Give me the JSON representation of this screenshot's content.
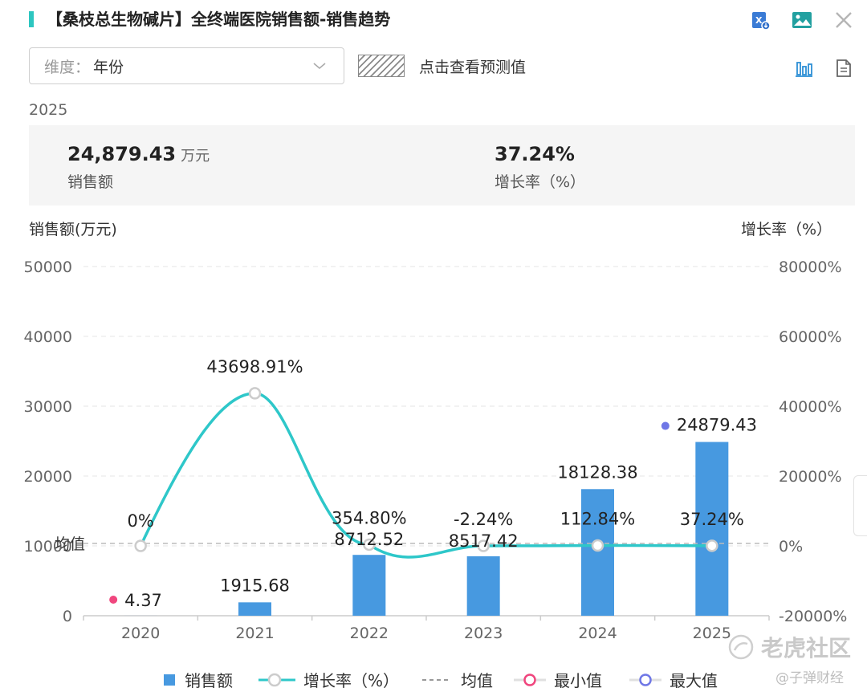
{
  "header": {
    "title": "【桑枝总生物碱片】全终端医院销售额-销售趋势",
    "export_icon": "excel-export-icon",
    "image_icon": "image-export-icon",
    "close_icon": "close-icon"
  },
  "toolbar": {
    "dimension_label": "维度：",
    "dimension_value": "年份",
    "forecast_label": "点击查看预测值",
    "bar_view_icon": "bar-chart-icon",
    "table_view_icon": "table-view-icon"
  },
  "summary": {
    "year": "2025",
    "sales_value": "24,879.43",
    "sales_unit": "万元",
    "sales_label": "销售额",
    "growth_value": "37.24%",
    "growth_label": "增长率（%）"
  },
  "chart_data": {
    "type": "bar",
    "categories": [
      "2020",
      "2021",
      "2022",
      "2023",
      "2024",
      "2025"
    ],
    "series": [
      {
        "name": "销售额",
        "type": "bar",
        "axis": "left",
        "values": [
          4.37,
          1915.68,
          8712.52,
          8517.42,
          18128.38,
          24879.43
        ],
        "labels": [
          "4.37",
          "1915.68",
          "8712.52",
          "8517.42",
          "18128.38",
          "24879.43"
        ]
      },
      {
        "name": "增长率（%）",
        "type": "line",
        "axis": "right",
        "values": [
          0,
          43698.91,
          354.8,
          -2.24,
          112.84,
          37.24
        ],
        "labels": [
          "0%",
          "43698.91%",
          "354.80%",
          "-2.24%",
          "112.84%",
          "37.24%"
        ]
      }
    ],
    "left_axis": {
      "title": "销售额(万元)",
      "ylim": [
        0,
        50000
      ],
      "ticks": [
        "0",
        "10000",
        "20000",
        "30000",
        "40000",
        "50000"
      ]
    },
    "right_axis": {
      "title": "增长率（%）",
      "ylim": [
        -20000,
        80000
      ],
      "ticks": [
        "-20000%",
        "0%",
        "20000%",
        "40000%",
        "60000%",
        "80000%"
      ]
    },
    "mean_line": {
      "label": "均值",
      "value": 10359.63
    },
    "min_point": {
      "category": "2020",
      "value": 4.37
    },
    "max_point": {
      "category": "2025",
      "value": 24879.43
    },
    "colors": {
      "bar": "#4799e0",
      "line": "#2ec7c9",
      "mean": "#bbbbbb",
      "min": "#f0467e",
      "max": "#6f77e6",
      "grid": "#e6e6e6",
      "axis_text": "#666666"
    }
  },
  "legend": [
    {
      "label": "销售额",
      "kind": "bar"
    },
    {
      "label": "增长率（%）",
      "kind": "line"
    },
    {
      "label": "均值",
      "kind": "mean"
    },
    {
      "label": "最小值",
      "kind": "min"
    },
    {
      "label": "最大值",
      "kind": "max"
    }
  ],
  "watermark": {
    "main": "老虎社区",
    "sub": "@子弹财经"
  }
}
